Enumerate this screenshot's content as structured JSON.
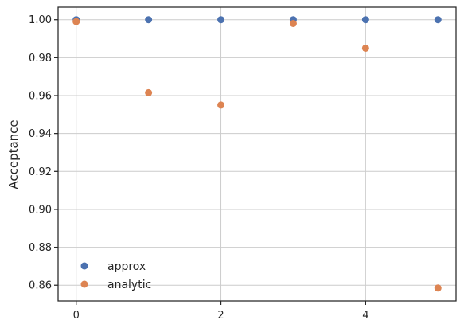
{
  "chart_data": {
    "type": "scatter",
    "title": "",
    "xlabel": "",
    "ylabel": "Acceptance",
    "xlim": [
      -0.25,
      5.25
    ],
    "ylim": [
      0.8517,
      1.0066
    ],
    "xticks": [
      0,
      2,
      4
    ],
    "xtick_labels": [
      "0",
      "2",
      "4"
    ],
    "yticks": [
      0.86,
      0.88,
      0.9,
      0.92,
      0.94,
      0.96,
      0.98,
      1.0
    ],
    "ytick_labels": [
      "0.86",
      "0.88",
      "0.90",
      "0.92",
      "0.94",
      "0.96",
      "0.98",
      "1.00"
    ],
    "grid": true,
    "legend_position": "lower-left",
    "series": [
      {
        "name": "approx",
        "color": "#4c72b0",
        "x": [
          0,
          1,
          2,
          3,
          4,
          5
        ],
        "y": [
          1.0,
          1.0,
          1.0,
          1.0,
          1.0,
          1.0
        ]
      },
      {
        "name": "analytic",
        "color": "#dd8452",
        "x": [
          0,
          1,
          2,
          3,
          4,
          5
        ],
        "y": [
          0.999,
          0.9615,
          0.955,
          0.998,
          0.985,
          0.8585
        ]
      }
    ]
  }
}
